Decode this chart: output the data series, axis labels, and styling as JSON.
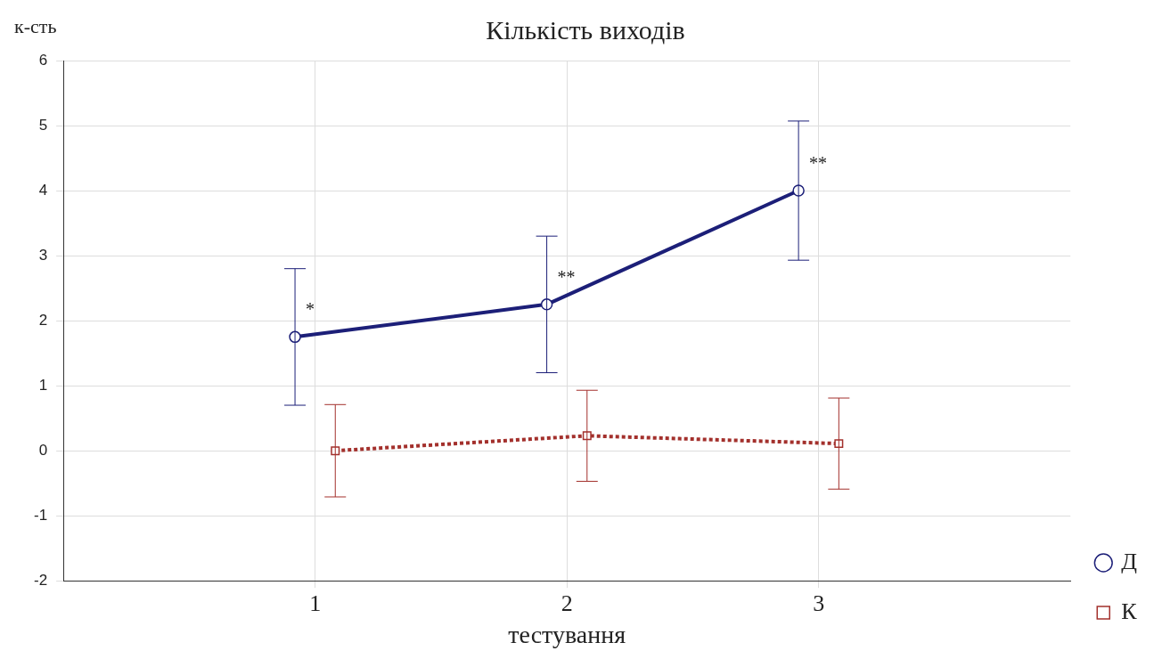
{
  "chart_data": {
    "type": "line",
    "title": "Кількість виходів",
    "xlabel": "тестування",
    "ylabel": "к-сть",
    "xlim": [
      0,
      4
    ],
    "xticks": [
      1,
      2,
      3
    ],
    "ylim": [
      -2,
      6
    ],
    "yticks": [
      -2,
      -1,
      0,
      1,
      2,
      3,
      4,
      5,
      6
    ],
    "grid": true,
    "legend": "bottom right",
    "series": [
      {
        "name": "Д",
        "color": "#1c1f78",
        "marker": "circle",
        "line_style": "solid",
        "x": [
          0.92,
          1.92,
          2.92
        ],
        "values": [
          1.75,
          2.25,
          4.0
        ],
        "errors": [
          1.05,
          1.05,
          1.07
        ]
      },
      {
        "name": "К",
        "color": "#a3302c",
        "marker": "square",
        "line_style": "dotted",
        "x": [
          1.08,
          2.08,
          3.08
        ],
        "values": [
          0,
          0.23,
          0.11
        ],
        "errors": [
          0.71,
          0.7,
          0.7
        ]
      }
    ],
    "annotations": [
      {
        "text": "*",
        "x": 0.92,
        "y": 2.15
      },
      {
        "text": "**",
        "x": 1.92,
        "y": 2.65
      },
      {
        "text": "**",
        "x": 2.92,
        "y": 4.4
      }
    ]
  }
}
